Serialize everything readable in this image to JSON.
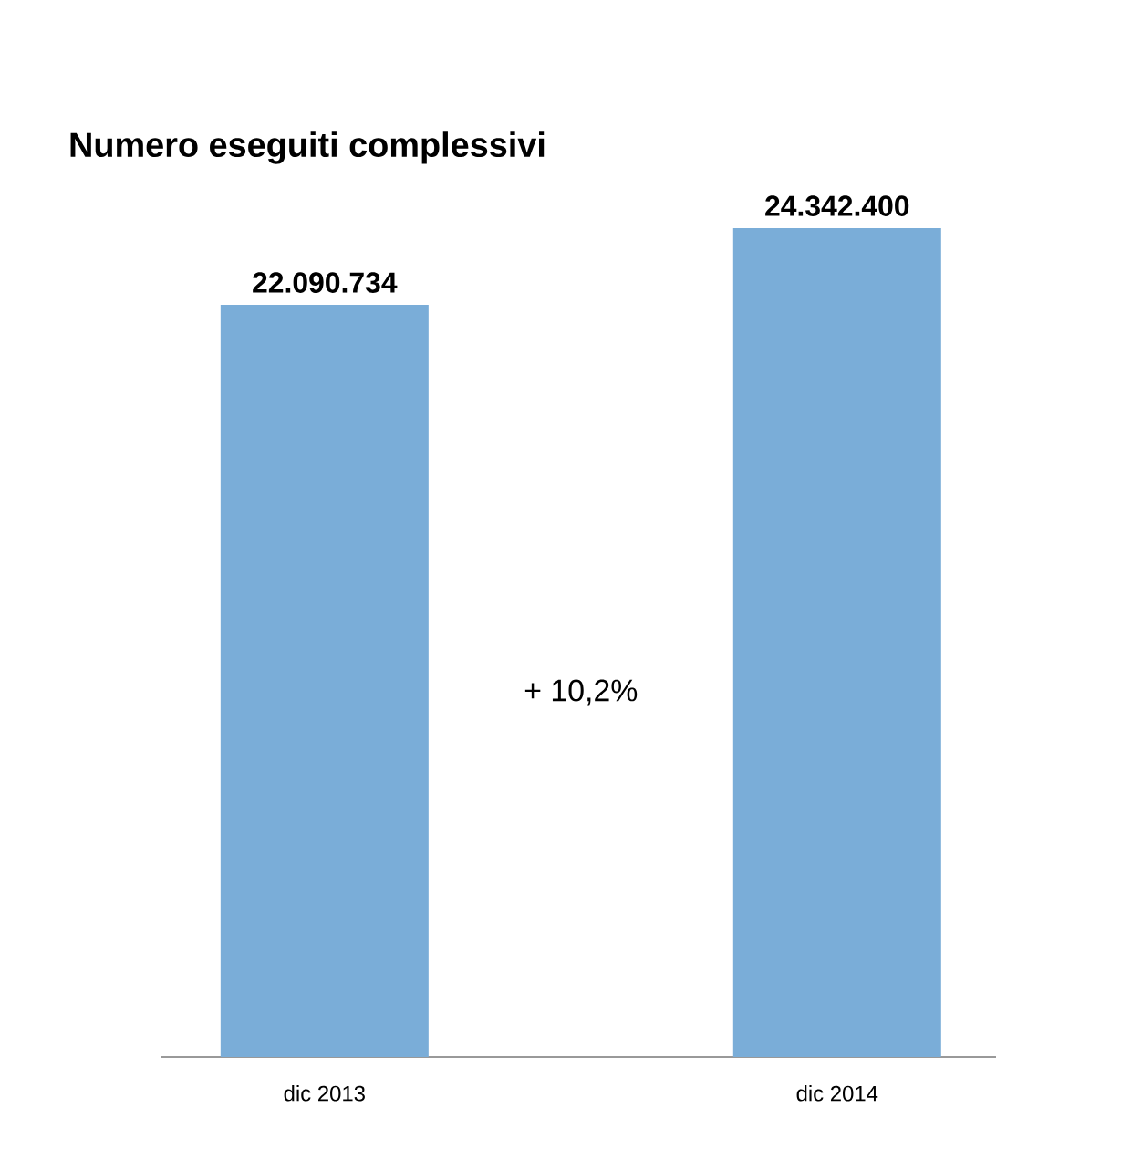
{
  "chart_data": {
    "type": "bar",
    "title": "Numero eseguiti complessivi",
    "categories": [
      "dic 2013",
      "dic 2014"
    ],
    "values": [
      22090734,
      24342400
    ],
    "value_labels": [
      "22.090.734",
      "24.342.400"
    ],
    "color": "#7aadd8",
    "annotations": [
      "+ 10,2%"
    ]
  }
}
